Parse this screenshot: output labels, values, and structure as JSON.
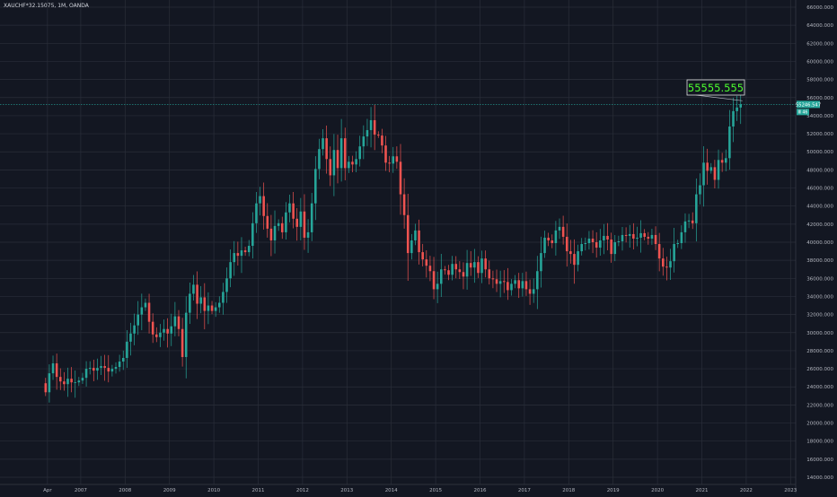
{
  "symbol": "XAUCHF*32.15075, 1M, OANDA",
  "colors": {
    "background": "#131722",
    "grid": "#2a2e39",
    "up": "#26a69a",
    "down": "#ef5350",
    "text": "#b2b5be",
    "annotation_text": "#4cff2f",
    "annotation_border": "#e0e0e0",
    "price_line": "#26a69a"
  },
  "chart_data": {
    "type": "candlestick",
    "title": "XAUCHF*32.15075, 1M, OANDA",
    "ylim": [
      14000,
      66000
    ],
    "yticks": [
      66000,
      64000,
      62000,
      60000,
      58000,
      56000,
      54000,
      52000,
      50000,
      48000,
      46000,
      44000,
      42000,
      40000,
      38000,
      36000,
      34000,
      32000,
      30000,
      28000,
      26000,
      24000,
      22000,
      20000,
      18000,
      16000,
      14000
    ],
    "ytick_labels": [
      "66000.000",
      "64000.000",
      "62000.000",
      "60000.000",
      "58000.000",
      "56000.000",
      "54000.000",
      "52000.000",
      "50000.000",
      "48000.000",
      "46000.000",
      "44000.000",
      "42000.000",
      "40000.000",
      "38000.000",
      "36000.000",
      "34000.000",
      "32000.000",
      "30000.000",
      "28000.000",
      "26000.000",
      "24000.000",
      "22000.000",
      "20000.000",
      "18000.000",
      "16000.000",
      "14000.000"
    ],
    "xticks": [
      {
        "year": 2006.25,
        "label": "Apr"
      },
      {
        "year": 2007,
        "label": "2007"
      },
      {
        "year": 2008,
        "label": "2008"
      },
      {
        "year": 2009,
        "label": "2009"
      },
      {
        "year": 2010,
        "label": "2010"
      },
      {
        "year": 2011,
        "label": "2011"
      },
      {
        "year": 2012,
        "label": "2012"
      },
      {
        "year": 2013,
        "label": "2013"
      },
      {
        "year": 2014,
        "label": "2014"
      },
      {
        "year": 2015,
        "label": "2015"
      },
      {
        "year": 2016,
        "label": "2016"
      },
      {
        "year": 2017,
        "label": "2017"
      },
      {
        "year": 2018,
        "label": "2018"
      },
      {
        "year": 2019,
        "label": "2019"
      },
      {
        "year": 2020,
        "label": "2020"
      },
      {
        "year": 2021,
        "label": "2021"
      },
      {
        "year": 2022,
        "label": "2022"
      },
      {
        "year": 2023,
        "label": "2023"
      }
    ],
    "xlim": [
      2006.0,
      2023.3
    ],
    "grid": true,
    "start": "2006-03",
    "closes": [
      23400,
      25500,
      26600,
      25100,
      24600,
      24300,
      24900,
      24500,
      24500,
      24700,
      25000,
      26000,
      26100,
      25800,
      26100,
      26300,
      26100,
      25700,
      26000,
      26200,
      26800,
      27200,
      29000,
      29900,
      30800,
      32000,
      32800,
      33300,
      31200,
      29800,
      29500,
      30000,
      30400,
      29900,
      30700,
      31800,
      30400,
      27300,
      32200,
      34300,
      35300,
      33200,
      33900,
      32400,
      33000,
      32400,
      32800,
      33300,
      34500,
      36000,
      37800,
      38800,
      38500,
      39100,
      38900,
      39600,
      42100,
      44300,
      45100,
      42900,
      41500,
      40200,
      41800,
      42100,
      41100,
      43300,
      44300,
      42600,
      41700,
      43400,
      40500,
      41100,
      44300,
      48100,
      50300,
      51500,
      49200,
      47400,
      50200,
      48200,
      51500,
      48200,
      48900,
      48600,
      49200,
      50600,
      51700,
      52400,
      53500,
      51900,
      51800,
      50700,
      48800,
      48700,
      49500,
      48900,
      45300,
      43000,
      38800,
      40200,
      41300,
      38900,
      38100,
      37400,
      36800,
      34800,
      35400,
      37000,
      36900,
      36400,
      37600,
      37000,
      36700,
      36200,
      37700,
      37200,
      37800,
      36600,
      38200,
      37000,
      36000,
      35900,
      35400,
      35700,
      35600,
      34700,
      35400,
      35800,
      34900,
      35700,
      34800,
      34300,
      34800,
      36800,
      38800,
      40500,
      40200,
      39900,
      41300,
      41700,
      40600,
      39000,
      38700,
      37500,
      39000,
      39800,
      39900,
      40400,
      40000,
      39400,
      40200,
      40700,
      40300,
      38700,
      40000,
      40100,
      40800,
      40700,
      40900,
      40400,
      40500,
      41000,
      40600,
      40400,
      40800,
      39800,
      38200,
      37300,
      37200,
      37900,
      39800,
      39900,
      41100,
      42300,
      42400,
      42100,
      45300,
      46300,
      48800,
      47900,
      48300,
      46900,
      49100,
      48800,
      49300,
      52800,
      54500,
      54900,
      55250
    ],
    "opens": [
      24400
    ],
    "last_price": 55246.547,
    "last_price_label": "55246.547",
    "countdown_label": "Ⅲ 46",
    "annotation": "55555.555"
  }
}
